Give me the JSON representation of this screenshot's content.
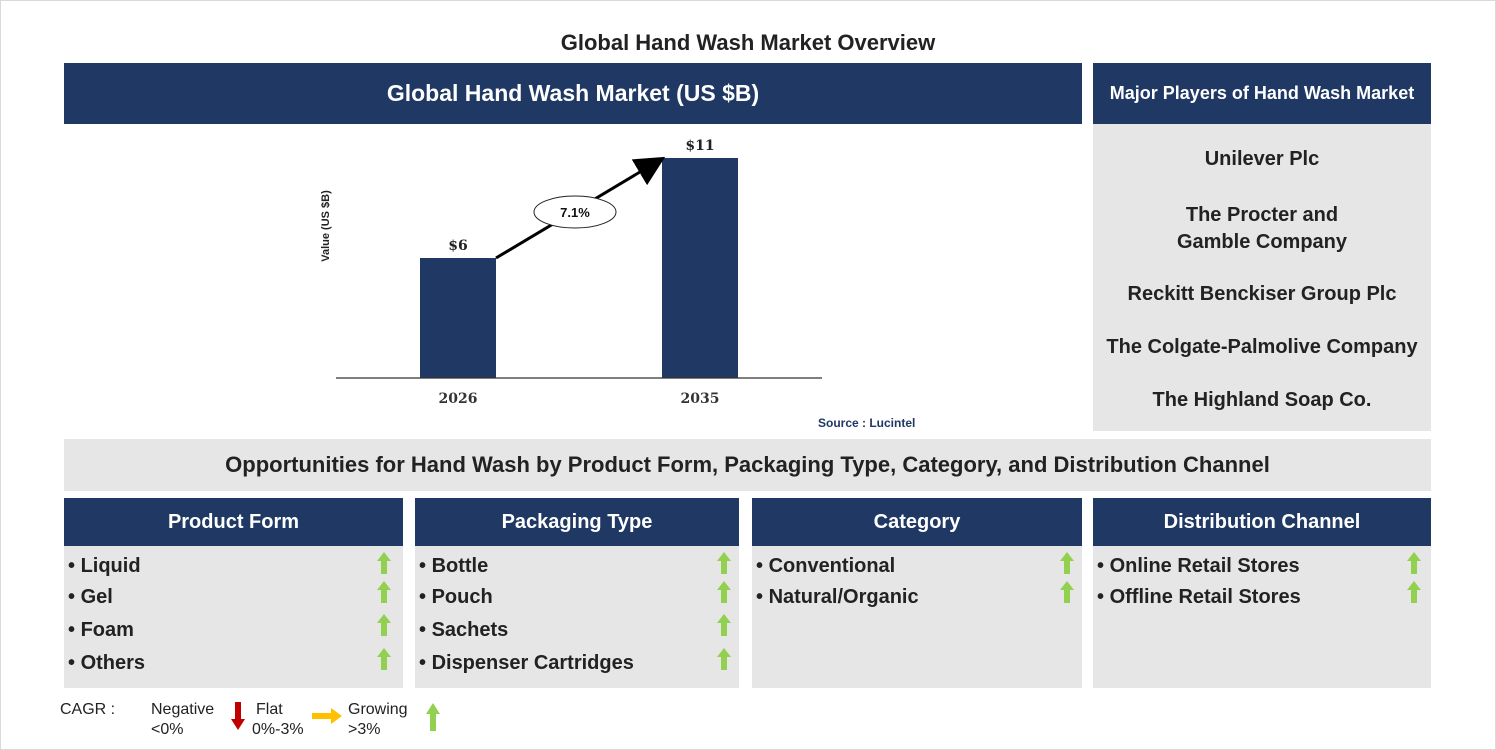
{
  "page_title": "Global Hand Wash Market Overview",
  "chart_header": "Global Hand Wash Market (US $B)",
  "chart_data": {
    "type": "bar",
    "categories": [
      "2026",
      "2035"
    ],
    "values": [
      6,
      11
    ],
    "value_labels": [
      "$6",
      "$11"
    ],
    "ylabel": "Value (US $B)",
    "cagr_label": "7.1%",
    "bar_color": "#1f3864"
  },
  "source": "Source : Lucintel",
  "players": {
    "header": "Major Players of Hand Wash Market",
    "items": [
      "Unilever Plc",
      "The Procter and Gamble Company",
      "Reckitt Benckiser Group Plc",
      "The Colgate-Palmolive Company",
      "The Highland Soap Co."
    ]
  },
  "opportunities_title": "Opportunities for Hand Wash by Product Form, Packaging Type, Category, and Distribution Channel",
  "segments": [
    {
      "title": "Product Form",
      "items": [
        "Liquid",
        "Gel",
        "Foam",
        "Others"
      ]
    },
    {
      "title": "Packaging Type",
      "items": [
        "Bottle",
        "Pouch",
        "Sachets",
        "Dispenser Cartridges"
      ]
    },
    {
      "title": "Category",
      "items": [
        "Conventional",
        "Natural/Organic"
      ]
    },
    {
      "title": "Distribution Channel",
      "items": [
        "Online Retail Stores",
        "Offline Retail Stores"
      ]
    }
  ],
  "legend": {
    "cagr_label": "CAGR :",
    "negative": "Negative",
    "negative_range": "<0%",
    "flat": "Flat",
    "flat_range": "0%-3%",
    "growing": "Growing",
    "growing_range": ">3%"
  },
  "colors": {
    "navy": "#1f3864",
    "panel_gray": "#e7e6e6",
    "growing_arrow": "#92d050",
    "negative_arrow": "#c00000",
    "flat_arrow": "#ffc000"
  }
}
